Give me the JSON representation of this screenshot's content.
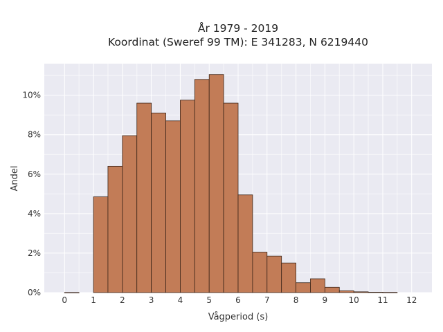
{
  "chart_data": {
    "type": "bar",
    "title": [
      "År 1979 - 2019",
      "Koordinat (Sweref 99 TM): E 341283, N 6219440"
    ],
    "xlabel": "Vågperiod (s)",
    "ylabel": "Andel",
    "xlim": [
      -0.7,
      12.7
    ],
    "ylim": [
      0,
      11.6
    ],
    "xticks": [
      0,
      1,
      2,
      3,
      4,
      5,
      6,
      7,
      8,
      9,
      10,
      11,
      12
    ],
    "xtick_labels": [
      "0",
      "1",
      "2",
      "3",
      "4",
      "5",
      "6",
      "7",
      "8",
      "9",
      "10",
      "11",
      "12"
    ],
    "yticks": [
      0,
      2,
      4,
      6,
      8,
      10
    ],
    "ytick_labels": [
      "0%",
      "2%",
      "4%",
      "6%",
      "8%",
      "10%"
    ],
    "grid": true,
    "bin_width": 0.5,
    "bins": [
      {
        "x0": 0.0,
        "x1": 0.5,
        "value": 0.0
      },
      {
        "x0": 1.0,
        "x1": 1.5,
        "value": 4.85
      },
      {
        "x0": 1.5,
        "x1": 2.0,
        "value": 6.4
      },
      {
        "x0": 2.0,
        "x1": 2.5,
        "value": 7.95
      },
      {
        "x0": 2.5,
        "x1": 3.0,
        "value": 9.6
      },
      {
        "x0": 3.0,
        "x1": 3.5,
        "value": 9.1
      },
      {
        "x0": 3.5,
        "x1": 4.0,
        "value": 8.7
      },
      {
        "x0": 4.0,
        "x1": 4.5,
        "value": 9.75
      },
      {
        "x0": 4.5,
        "x1": 5.0,
        "value": 10.8
      },
      {
        "x0": 5.0,
        "x1": 5.5,
        "value": 11.05
      },
      {
        "x0": 5.5,
        "x1": 6.0,
        "value": 9.6
      },
      {
        "x0": 6.0,
        "x1": 6.5,
        "value": 4.95
      },
      {
        "x0": 6.5,
        "x1": 7.0,
        "value": 2.05
      },
      {
        "x0": 7.0,
        "x1": 7.5,
        "value": 1.85
      },
      {
        "x0": 7.5,
        "x1": 8.0,
        "value": 1.5
      },
      {
        "x0": 8.0,
        "x1": 8.5,
        "value": 0.5
      },
      {
        "x0": 8.5,
        "x1": 9.0,
        "value": 0.7
      },
      {
        "x0": 9.0,
        "x1": 9.5,
        "value": 0.27
      },
      {
        "x0": 9.5,
        "x1": 10.0,
        "value": 0.09
      },
      {
        "x0": 10.0,
        "x1": 10.5,
        "value": 0.04
      },
      {
        "x0": 10.5,
        "x1": 11.0,
        "value": 0.02
      },
      {
        "x0": 11.0,
        "x1": 11.5,
        "value": 0.01
      }
    ],
    "colors": {
      "bar_fill": "#c27c57",
      "bar_edge": "#3a2418",
      "plot_background": "#eaeaf2"
    }
  }
}
